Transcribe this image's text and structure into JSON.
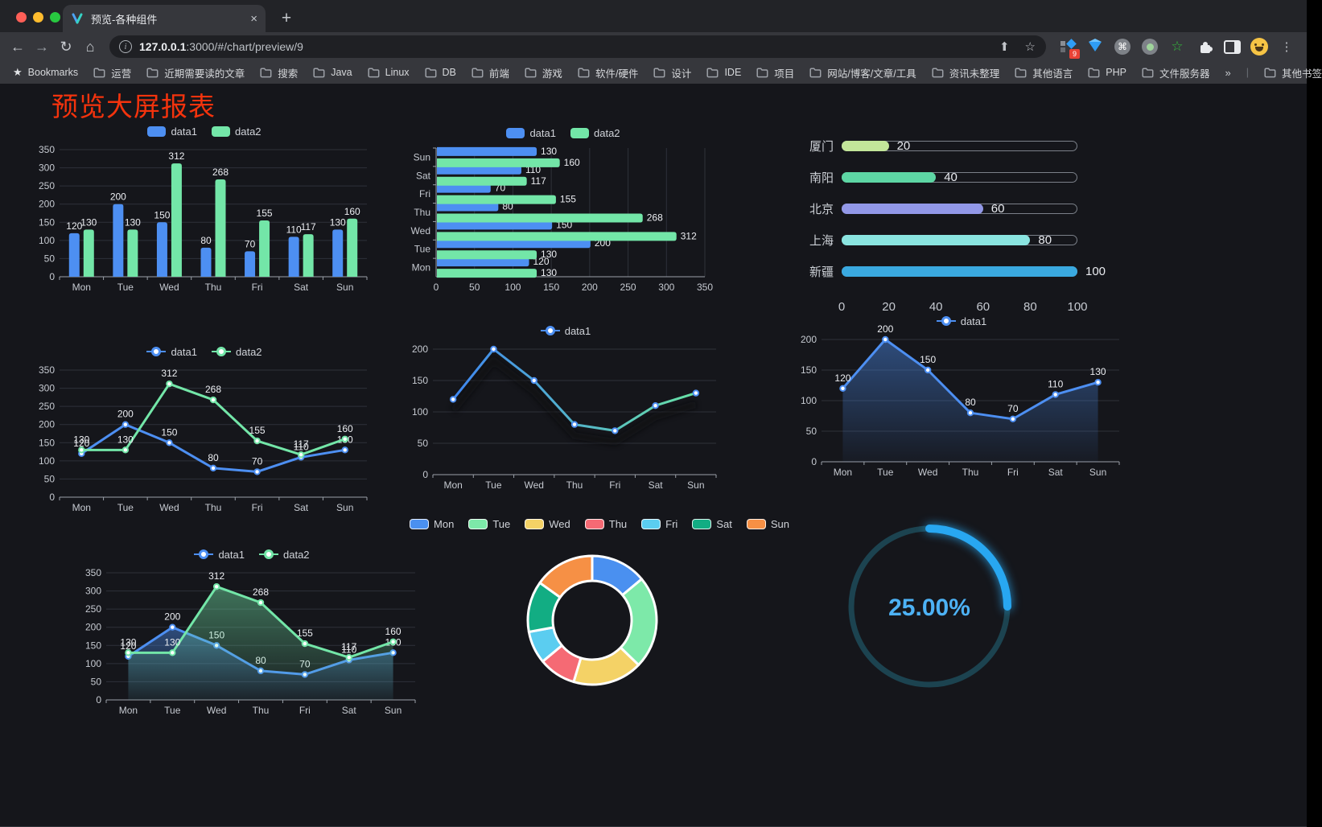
{
  "browser": {
    "tab": {
      "title": "预览-各种组件",
      "close": "×",
      "new_tab": "+"
    },
    "nav": {
      "back": "←",
      "forward": "→",
      "reload": "↻",
      "home": "⌂"
    },
    "url": {
      "host": "127.0.0.1",
      "path": ":3000/#/chart/preview/9"
    },
    "omnibox_icons": {
      "share": "⬆",
      "bookmark_star": "☆"
    },
    "ext_badge": "9",
    "menu_dots": "⋮"
  },
  "bookmarks": {
    "label": "Bookmarks",
    "items": [
      "运营",
      "近期需要读的文章",
      "搜索",
      "Java",
      "Linux",
      "DB",
      "前端",
      "游戏",
      "软件/硬件",
      "设计",
      "IDE",
      "项目",
      "网站/博客/文章/工具",
      "资讯未整理",
      "其他语言",
      "PHP",
      "文件服务器"
    ],
    "overflow": "»",
    "other": "其他书签"
  },
  "page": {
    "title": "预览大屏报表"
  },
  "colors": {
    "data1": "#4d8ff2",
    "data2": "#73e6a8",
    "axis_text": "#c6cad1",
    "grid": "#2e313a",
    "axis_line": "#9aa0a8",
    "label_text": "#eceef2",
    "page_bg": "#15161b",
    "title_red": "#f4330d"
  },
  "chart_data": [
    {
      "id": "bar-grouped",
      "type": "bar",
      "categories": [
        "Mon",
        "Tue",
        "Wed",
        "Thu",
        "Fri",
        "Sat",
        "Sun"
      ],
      "series": [
        {
          "name": "data1",
          "color": "#4d8ff2",
          "values": [
            120,
            200,
            150,
            80,
            70,
            110,
            130
          ]
        },
        {
          "name": "data2",
          "color": "#73e6a8",
          "values": [
            130,
            130,
            312,
            268,
            155,
            117,
            160
          ]
        }
      ],
      "ylim": [
        0,
        350
      ],
      "ytick": 50,
      "labels": true,
      "legend": true,
      "grid": true
    },
    {
      "id": "bar-horizontal",
      "type": "bar",
      "orientation": "horizontal",
      "categories": [
        "Mon",
        "Tue",
        "Wed",
        "Thu",
        "Fri",
        "Sat",
        "Sun"
      ],
      "series": [
        {
          "name": "data1",
          "color": "#4d8ff2",
          "values": [
            120,
            200,
            150,
            80,
            70,
            110,
            130
          ]
        },
        {
          "name": "data2",
          "color": "#73e6a8",
          "values": [
            130,
            130,
            312,
            268,
            155,
            117,
            160
          ]
        }
      ],
      "xlim": [
        0,
        350
      ],
      "xtick": 50,
      "labels": true,
      "legend": true,
      "grid": true
    },
    {
      "id": "progress-list",
      "type": "bar",
      "orientation": "progress",
      "categories": [
        "厦门",
        "南阳",
        "北京",
        "上海",
        "新疆"
      ],
      "values": [
        20,
        40,
        60,
        80,
        100
      ],
      "colors": [
        "#c3e69a",
        "#5dd6a4",
        "#9298e8",
        "#8ae4e0",
        "#3aa9e0"
      ],
      "xlim": [
        0,
        100
      ],
      "xticks": [
        0,
        20,
        40,
        60,
        80,
        100
      ]
    },
    {
      "id": "line-dual",
      "type": "line",
      "categories": [
        "Mon",
        "Tue",
        "Wed",
        "Thu",
        "Fri",
        "Sat",
        "Sun"
      ],
      "series": [
        {
          "name": "data1",
          "color": "#4d8ff2",
          "values": [
            120,
            200,
            150,
            80,
            70,
            110,
            130
          ]
        },
        {
          "name": "data2",
          "color": "#73e6a8",
          "values": [
            130,
            130,
            312,
            268,
            155,
            117,
            160
          ]
        }
      ],
      "ylim": [
        0,
        350
      ],
      "ytick": 50,
      "labels": true,
      "legend": true,
      "grid": true
    },
    {
      "id": "line-gradient",
      "type": "line",
      "categories": [
        "Mon",
        "Tue",
        "Wed",
        "Thu",
        "Fri",
        "Sat",
        "Sun"
      ],
      "series": [
        {
          "name": "data1",
          "color": "#4d8ff2",
          "gradient": [
            "#3f86f0",
            "#68e2a5"
          ],
          "values": [
            120,
            200,
            150,
            80,
            70,
            110,
            130
          ]
        }
      ],
      "ylim": [
        0,
        200
      ],
      "ytick": 50,
      "labels": false,
      "legend": true,
      "shadow": true,
      "grid": true
    },
    {
      "id": "area-single",
      "type": "area",
      "categories": [
        "Mon",
        "Tue",
        "Wed",
        "Thu",
        "Fri",
        "Sat",
        "Sun"
      ],
      "series": [
        {
          "name": "data1",
          "color": "#4d8ff2",
          "values": [
            120,
            200,
            150,
            80,
            70,
            110,
            130
          ],
          "area": true
        }
      ],
      "ylim": [
        0,
        200
      ],
      "ytick": 50,
      "labels": true,
      "legend": true,
      "grid": true
    },
    {
      "id": "area-dual",
      "type": "area",
      "categories": [
        "Mon",
        "Tue",
        "Wed",
        "Thu",
        "Fri",
        "Sat",
        "Sun"
      ],
      "series": [
        {
          "name": "data1",
          "color": "#4d8ff2",
          "values": [
            120,
            200,
            150,
            80,
            70,
            110,
            130
          ],
          "area": true
        },
        {
          "name": "data2",
          "color": "#73e6a8",
          "values": [
            130,
            130,
            312,
            268,
            155,
            117,
            160
          ],
          "area": true
        }
      ],
      "ylim": [
        0,
        350
      ],
      "ytick": 50,
      "labels": true,
      "legend": true,
      "grid": true
    },
    {
      "id": "donut",
      "type": "pie",
      "inner_radius": 49,
      "outer_radius": 80,
      "categories": [
        "Mon",
        "Tue",
        "Wed",
        "Thu",
        "Fri",
        "Sat",
        "Sun"
      ],
      "values": [
        120,
        200,
        150,
        80,
        70,
        110,
        130
      ],
      "colors": [
        "#4a90f0",
        "#7de9a9",
        "#f4d266",
        "#f56a74",
        "#5bcdf0",
        "#12ad83",
        "#f69045"
      ],
      "legend": true
    },
    {
      "id": "gauge",
      "type": "gauge",
      "value": 25,
      "max": 100,
      "label": "25.00%",
      "color": "#28a7f1",
      "track": "#1c4350",
      "text_color": "#4db2f5"
    }
  ]
}
